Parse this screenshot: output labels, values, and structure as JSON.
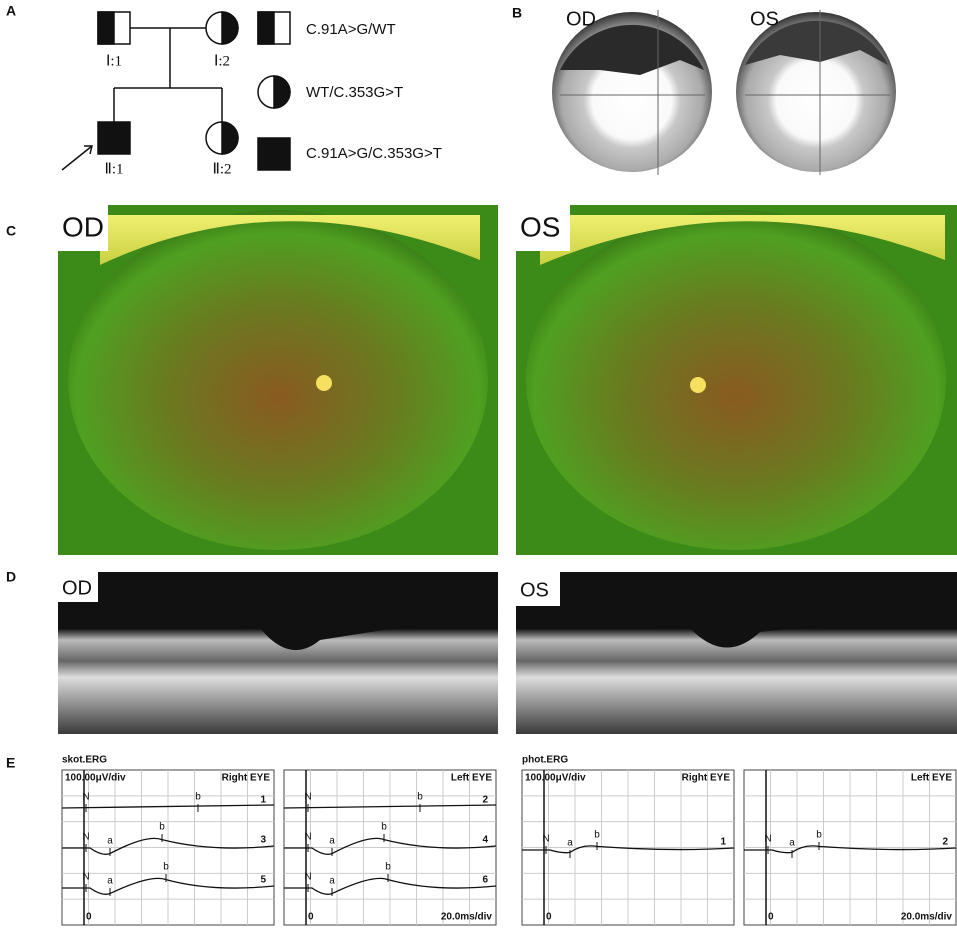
{
  "panels": {
    "A": {
      "label": "A",
      "pedigree": {
        "members": [
          "Ⅰ:1",
          "Ⅰ:2",
          "Ⅱ:1",
          "Ⅱ:2"
        ]
      },
      "legend": [
        "C.91A>G/WT",
        "WT/C.353G>T",
        "C.91A>G/C.353G>T"
      ]
    },
    "B": {
      "label": "B",
      "fields": [
        "OD",
        "OS"
      ]
    },
    "C": {
      "label": "C",
      "images": [
        "OD",
        "OS"
      ]
    },
    "D": {
      "label": "D",
      "images": [
        "OD",
        "OS"
      ]
    },
    "E": {
      "label": "E",
      "groups": [
        {
          "title": "skot.ERG",
          "scale": "100.00μV/div",
          "time_scale": "20.0ms/div",
          "panels": [
            {
              "eye": "Right EYE",
              "zero": "0",
              "traces": [
                {
                  "number": "1",
                  "markers": [
                    "N",
                    "b"
                  ]
                },
                {
                  "number": "3",
                  "markers": [
                    "N",
                    "a",
                    "b"
                  ]
                },
                {
                  "number": "5",
                  "markers": [
                    "N",
                    "a",
                    "b"
                  ]
                }
              ]
            },
            {
              "eye": "Left EYE",
              "zero": "0",
              "traces": [
                {
                  "number": "2",
                  "markers": [
                    "N",
                    "b"
                  ]
                },
                {
                  "number": "4",
                  "markers": [
                    "N",
                    "a",
                    "b"
                  ]
                },
                {
                  "number": "6",
                  "markers": [
                    "N",
                    "a",
                    "b"
                  ]
                }
              ]
            }
          ]
        },
        {
          "title": "phot.ERG",
          "scale": "100.00μV/div",
          "time_scale": "20.0ms/div",
          "panels": [
            {
              "eye": "Right EYE",
              "zero": "0",
              "traces": [
                {
                  "number": "1",
                  "markers": [
                    "N",
                    "a",
                    "b"
                  ]
                }
              ]
            },
            {
              "eye": "Left EYE",
              "zero": "0",
              "traces": [
                {
                  "number": "2",
                  "markers": [
                    "N",
                    "a",
                    "b"
                  ]
                }
              ]
            }
          ]
        }
      ]
    }
  }
}
